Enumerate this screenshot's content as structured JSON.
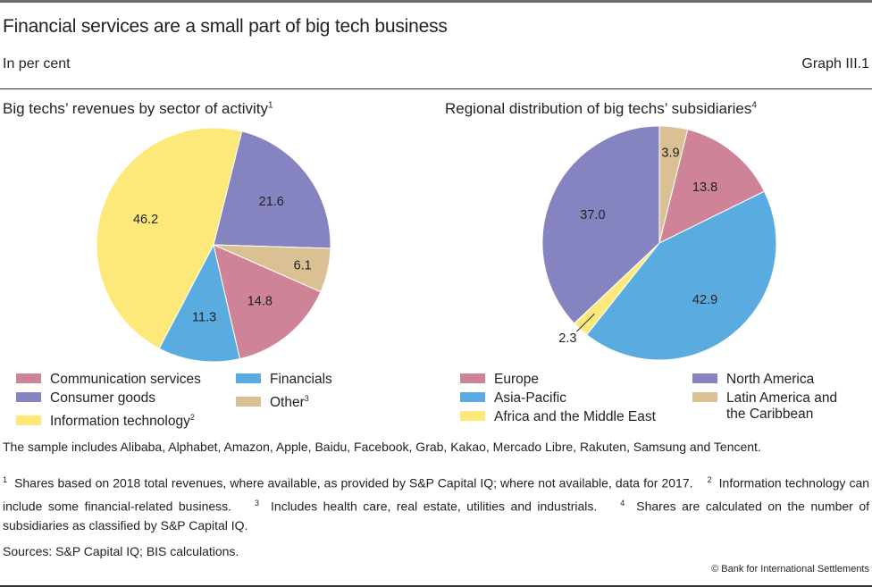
{
  "header": {
    "title": "Financial services are a small part of big tech business",
    "subtitle": "In per cent",
    "graph_number": "Graph III.1"
  },
  "colors": {
    "pink": "#cf8397",
    "purple": "#8683c1",
    "yellow": "#fde97a",
    "blue": "#5aace0",
    "tan": "#d9c193"
  },
  "chart_data": [
    {
      "type": "pie",
      "title": "Big techs’ revenues by sector of activity",
      "title_footnote": "1",
      "start_angle_deg": 14,
      "direction": "clockwise",
      "slices": [
        {
          "label": "Consumer goods",
          "value": 21.6,
          "color": "#8683c1",
          "data_label": "21.6"
        },
        {
          "label": "Other",
          "value": 6.1,
          "color": "#d9c193",
          "data_label": "6.1"
        },
        {
          "label": "Communication services",
          "value": 14.8,
          "color": "#cf8397",
          "data_label": "14.8"
        },
        {
          "label": "Financials",
          "value": 11.3,
          "color": "#5aace0",
          "data_label": "11.3"
        },
        {
          "label": "Information technology",
          "value": 46.2,
          "color": "#fde97a",
          "data_label": "46.2"
        }
      ],
      "legend": [
        {
          "label": "Communication services",
          "footnote": "",
          "color": "#cf8397"
        },
        {
          "label": "Consumer goods",
          "footnote": "",
          "color": "#8683c1"
        },
        {
          "label": "Information technology",
          "footnote": "2",
          "color": "#fde97a"
        },
        {
          "label": "Financials",
          "footnote": "",
          "color": "#5aace0"
        },
        {
          "label": "Other",
          "footnote": "3",
          "color": "#d9c193"
        }
      ]
    },
    {
      "type": "pie",
      "title": "Regional distribution of big techs’ subsidiaries",
      "title_footnote": "4",
      "start_angle_deg": 0,
      "direction": "clockwise",
      "slices": [
        {
          "label": "Latin America and the Caribbean",
          "value": 3.9,
          "color": "#d9c193",
          "data_label": "3.9"
        },
        {
          "label": "Europe",
          "value": 13.8,
          "color": "#cf8397",
          "data_label": "13.8"
        },
        {
          "label": "Asia-Pacific",
          "value": 42.9,
          "color": "#5aace0",
          "data_label": "42.9"
        },
        {
          "label": "Africa and the Middle East",
          "value": 2.3,
          "color": "#fde97a",
          "data_label": "2.3",
          "leader_line": true
        },
        {
          "label": "North America",
          "value": 37.0,
          "color": "#8683c1",
          "data_label": "37.0"
        }
      ],
      "legend": [
        {
          "label": "Europe",
          "color": "#cf8397"
        },
        {
          "label": "Asia-Pacific",
          "color": "#5aace0"
        },
        {
          "label": "Africa and the Middle East",
          "color": "#fde97a"
        },
        {
          "label": "North America",
          "color": "#8683c1"
        },
        {
          "label": "Latin America and",
          "label_line2": "the Caribbean",
          "color": "#d9c193"
        }
      ]
    }
  ],
  "notes": {
    "sample": "The sample includes Alibaba, Alphabet, Amazon, Apple, Baidu, Facebook, Grab, Kakao, Mercado Libre, Rakuten, Samsung and Tencent.",
    "fn1_mark": "1",
    "fn1": "Shares based on 2018 total revenues, where available, as provided by S&P Capital IQ; where not available, data for 2017.",
    "fn2_mark": "2",
    "fn2": "Information technology can include some financial-related business.",
    "fn3_mark": "3",
    "fn3": "Includes health care, real estate, utilities and industrials.",
    "fn4_mark": "4",
    "fn4": "Shares are calculated on the number of subsidiaries as classified by S&P Capital IQ.",
    "sources": "Sources: S&P Capital IQ; BIS calculations.",
    "copyright": "© Bank for International Settlements"
  }
}
